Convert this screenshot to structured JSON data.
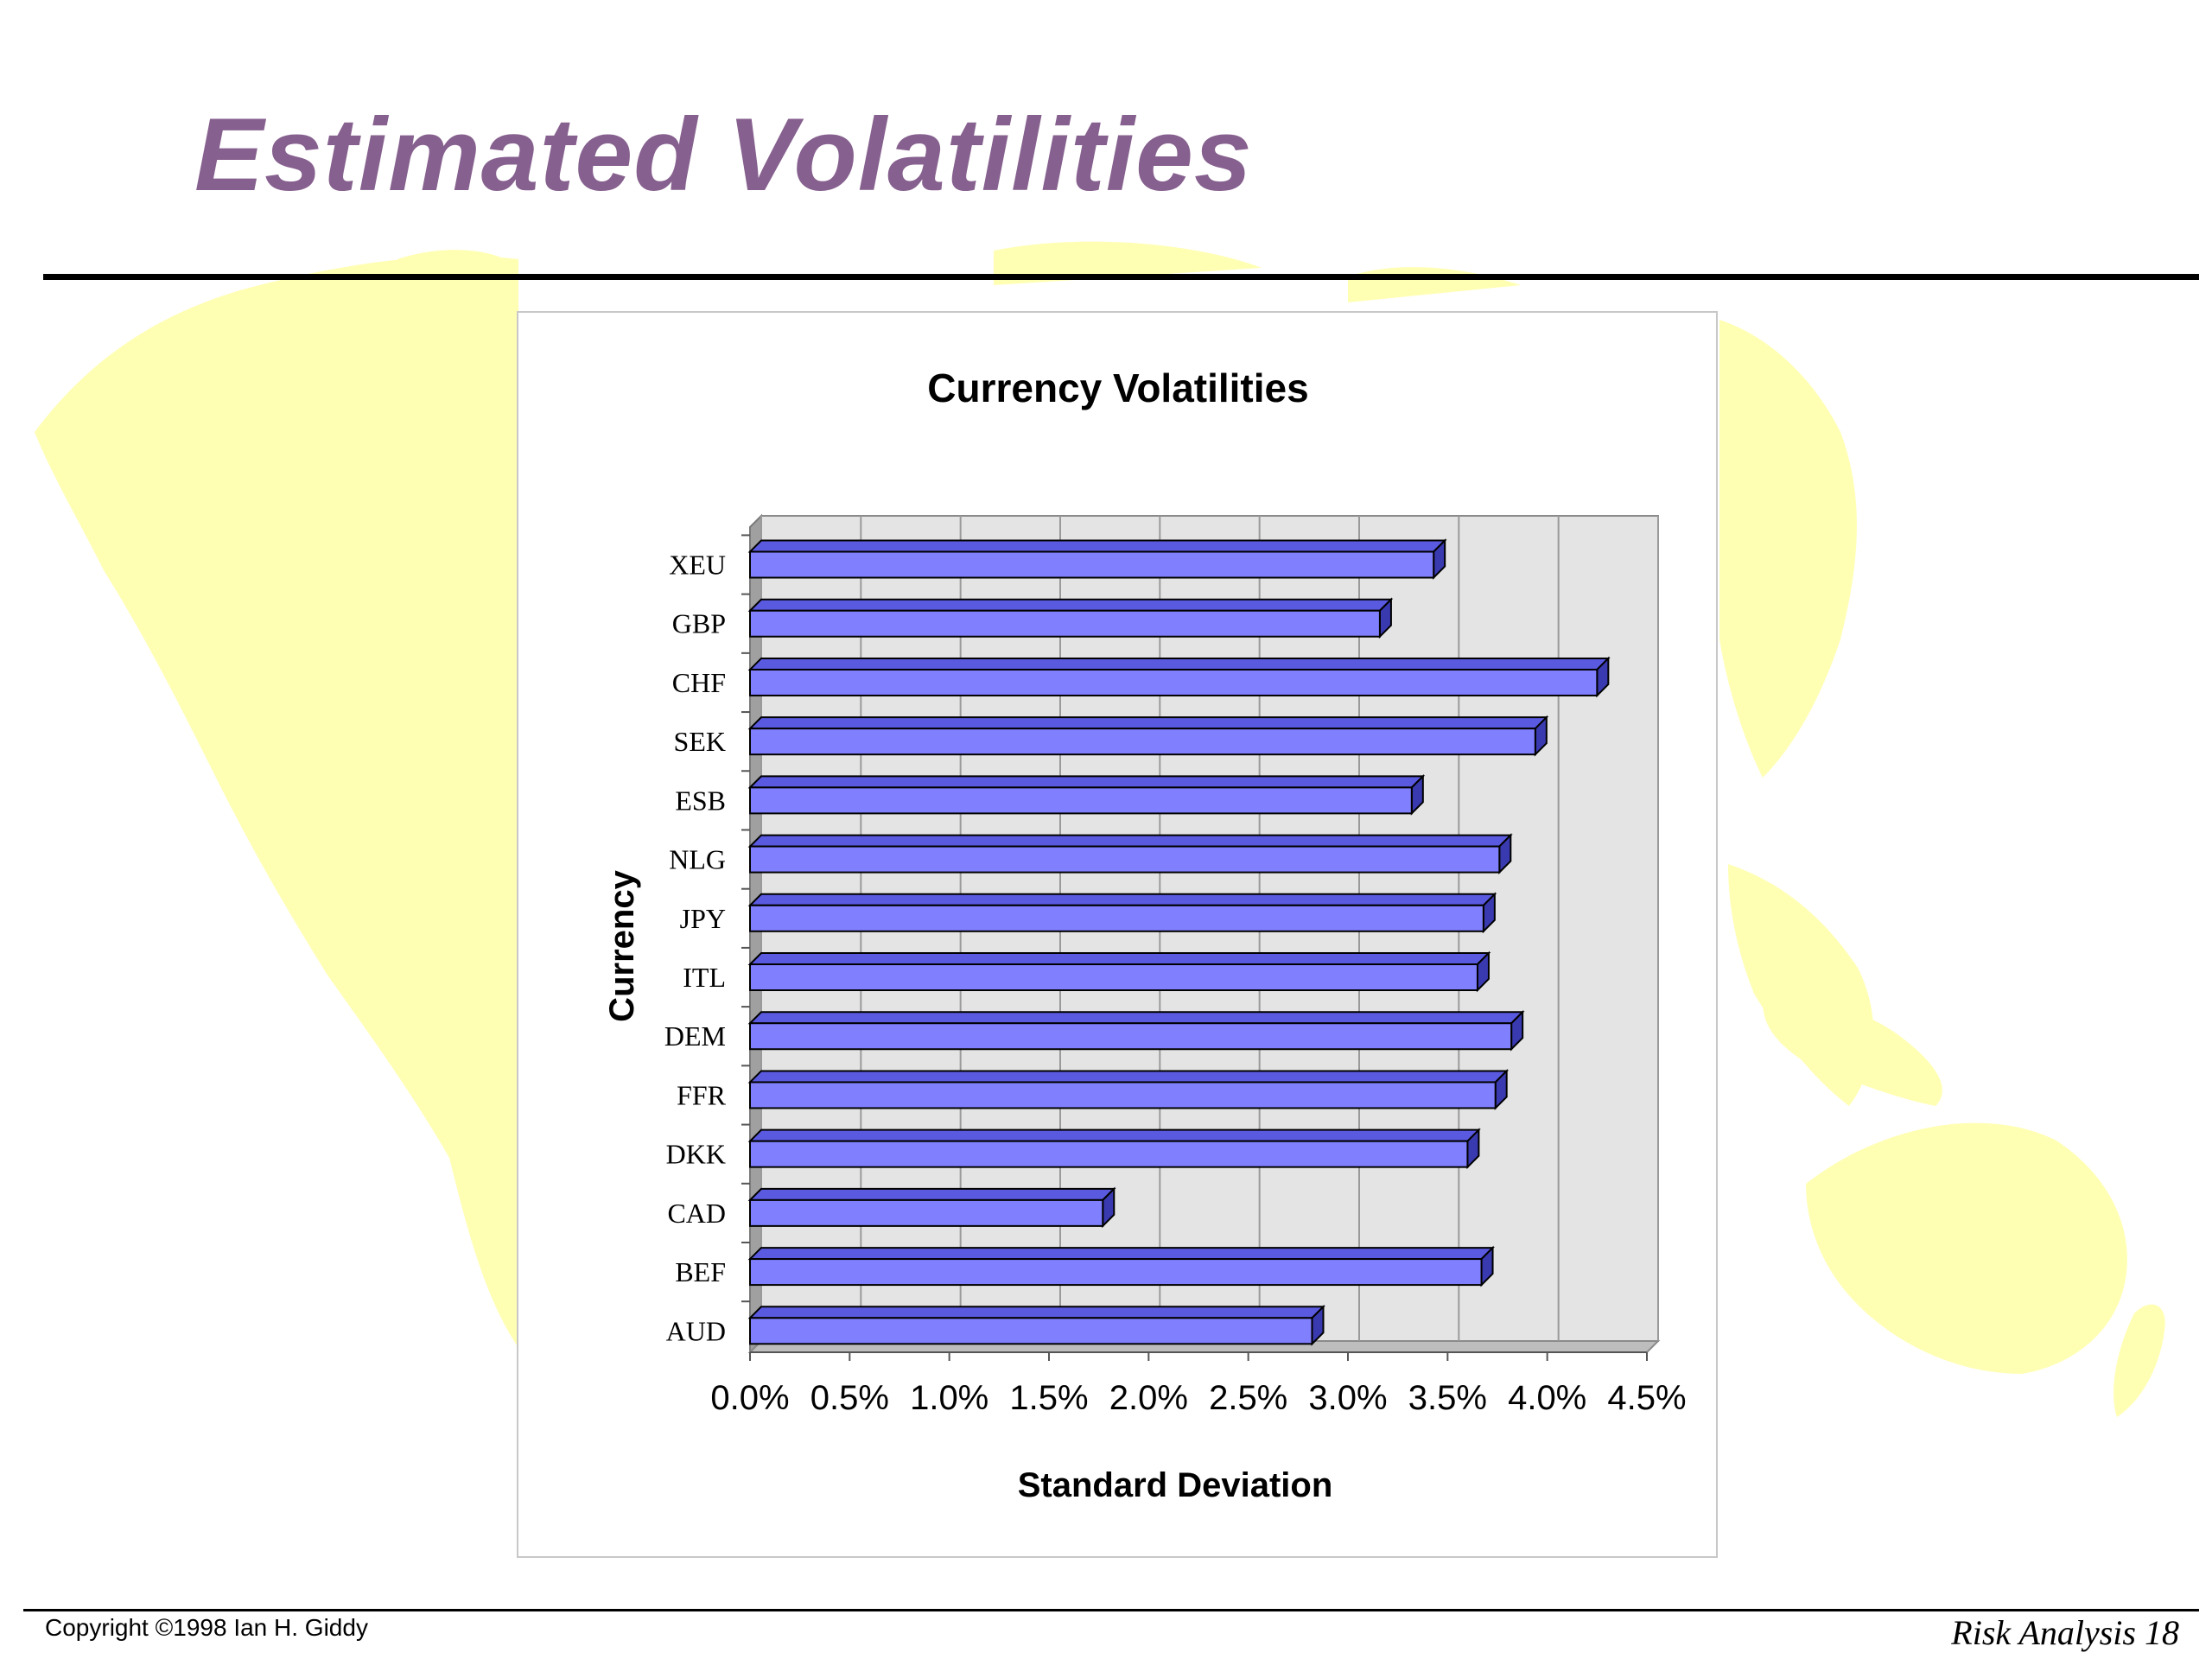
{
  "slide": {
    "title": "Estimated Volatilities",
    "copyright": "Copyright ©1998 Ian H. Giddy",
    "slide_label": "Risk Analysis 18"
  },
  "colors": {
    "title": "#86608e",
    "bar_front": "#8080ff",
    "bar_top": "#5a5ae0",
    "bar_side": "#3a3ab0",
    "plot_wall": "#e4e4e4",
    "map": "#ffffb4"
  },
  "chart_data": {
    "type": "bar",
    "orientation": "horizontal",
    "title": "Currency Volatilities",
    "xlabel": "Standard Deviation",
    "ylabel": "Currency",
    "categories": [
      "XEU",
      "GBP",
      "CHF",
      "SEK",
      "ESB",
      "NLG",
      "JPY",
      "ITL",
      "DEM",
      "FFR",
      "DKK",
      "CAD",
      "BEF",
      "AUD"
    ],
    "values": [
      0.0343,
      0.0316,
      0.0425,
      0.0394,
      0.0332,
      0.0376,
      0.0368,
      0.0365,
      0.0382,
      0.0374,
      0.036,
      0.0177,
      0.0367,
      0.0282
    ],
    "xlim": [
      0,
      0.045
    ],
    "xticks": [
      0,
      0.005,
      0.01,
      0.015,
      0.02,
      0.025,
      0.03,
      0.035,
      0.04,
      0.045
    ],
    "xtick_labels": [
      "0.0%",
      "0.5%",
      "1.0%",
      "1.5%",
      "2.0%",
      "2.5%",
      "3.0%",
      "3.5%",
      "4.0%",
      "4.5%"
    ],
    "grid": true,
    "legend": "none"
  }
}
